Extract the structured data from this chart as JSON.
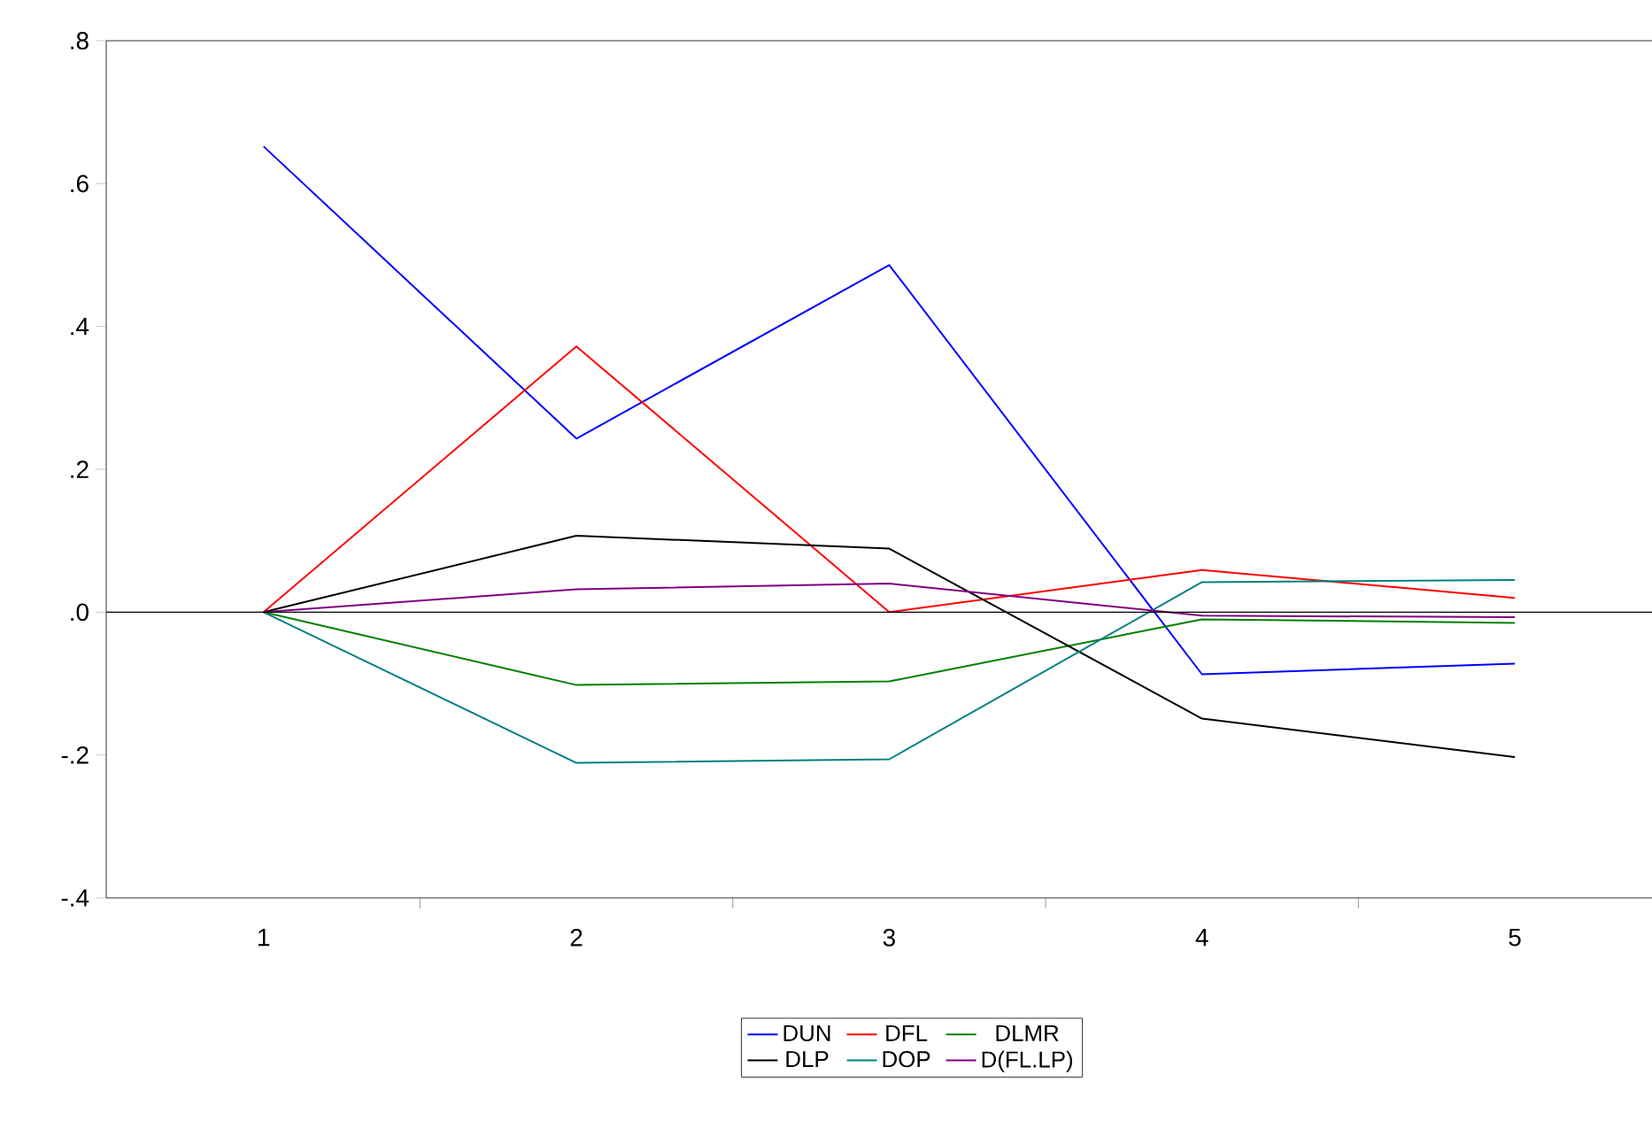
{
  "chart_data": {
    "type": "line",
    "categories": [
      "1",
      "2",
      "3",
      "4",
      "5"
    ],
    "series": [
      {
        "name": "DUN",
        "color": "#0000ff",
        "values": [
          0.652,
          0.243,
          0.486,
          -0.087,
          -0.072
        ]
      },
      {
        "name": "DFL",
        "color": "#ff0000",
        "values": [
          0.0,
          0.372,
          0.0,
          0.059,
          0.02
        ]
      },
      {
        "name": "DLMR",
        "color": "#008000",
        "values": [
          0.0,
          -0.102,
          -0.097,
          -0.01,
          -0.015
        ]
      },
      {
        "name": "DLP",
        "color": "#000000",
        "values": [
          0.0,
          0.107,
          0.089,
          -0.149,
          -0.203
        ]
      },
      {
        "name": "DOP",
        "color": "#008080",
        "values": [
          0.0,
          -0.211,
          -0.206,
          0.042,
          0.045
        ]
      },
      {
        "name": "D(FL.LP)",
        "color": "#800080",
        "values": [
          0.0,
          0.032,
          0.04,
          -0.005,
          -0.007
        ]
      }
    ],
    "ylim": [
      -0.4,
      0.8
    ],
    "yticks": [
      {
        "value": -0.4,
        "label": "-.4"
      },
      {
        "value": -0.2,
        "label": "-.2"
      },
      {
        "value": 0,
        "label": ".0"
      },
      {
        "value": 0.2,
        "label": ".2"
      },
      {
        "value": 0.4,
        "label": ".4"
      },
      {
        "value": 0.6,
        "label": ".6"
      },
      {
        "value": 0.8,
        "label": ".8"
      }
    ],
    "ref_lines": [
      {
        "axis": "y",
        "value": 0,
        "color": "#000000"
      }
    ],
    "legend": "bottom"
  }
}
